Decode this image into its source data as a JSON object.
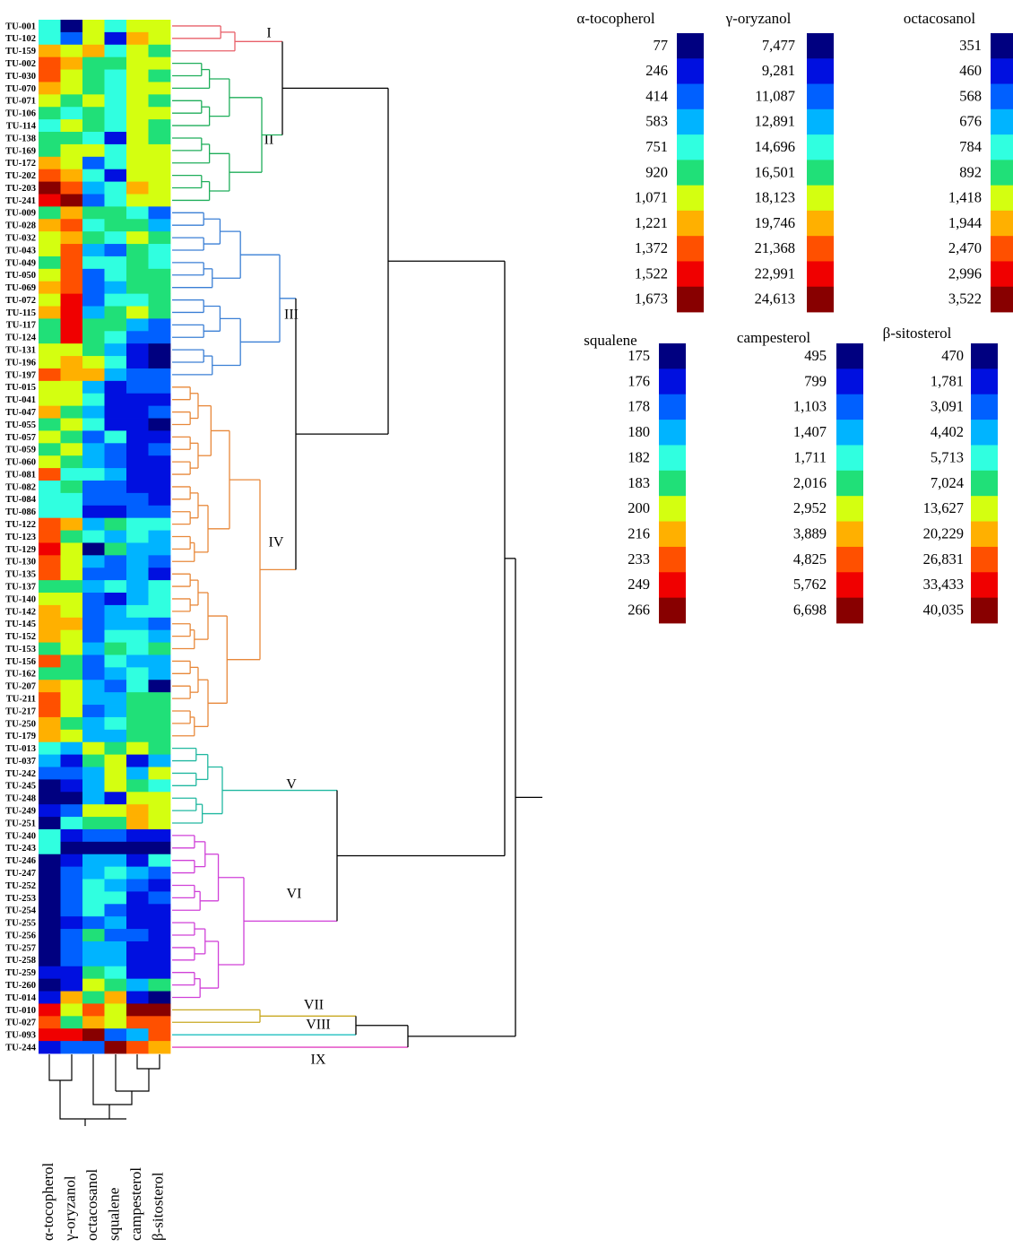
{
  "chart_data": {
    "type": "heatmap",
    "colorscale": [
      "#000080",
      "#0010e0",
      "#0060ff",
      "#00b4ff",
      "#30ffe0",
      "#20e078",
      "#d4ff10",
      "#ffb000",
      "#ff5000",
      "#f00000",
      "#880000"
    ],
    "clusters": [
      {
        "label": "I",
        "color": "#e8606a",
        "rows": [
          "TU-001",
          "TU-102",
          "TU-159"
        ]
      },
      {
        "label": "II",
        "color": "#1fae5a",
        "rows": [
          "TU-002",
          "TU-030",
          "TU-070",
          "TU-071",
          "TU-106",
          "TU-114",
          "TU-138",
          "TU-169",
          "TU-172",
          "TU-202",
          "TU-203",
          "TU-241"
        ]
      },
      {
        "label": "III",
        "color": "#3a7fd5",
        "rows": [
          "TU-009",
          "TU-028",
          "TU-032",
          "TU-043",
          "TU-049",
          "TU-050",
          "TU-069",
          "TU-072",
          "TU-115",
          "TU-117",
          "TU-124",
          "TU-131",
          "TU-196",
          "TU-197"
        ]
      },
      {
        "label": "IV",
        "color": "#e8883a",
        "rows": [
          "TU-015",
          "TU-041",
          "TU-047",
          "TU-055",
          "TU-057",
          "TU-059",
          "TU-060",
          "TU-081",
          "TU-082",
          "TU-084",
          "TU-086",
          "TU-122",
          "TU-123",
          "TU-129",
          "TU-130",
          "TU-135",
          "TU-137",
          "TU-140",
          "TU-142",
          "TU-145",
          "TU-152",
          "TU-153",
          "TU-156",
          "TU-162",
          "TU-207",
          "TU-211",
          "TU-217",
          "TU-250",
          "TU-179"
        ]
      },
      {
        "label": "V",
        "color": "#20b8a0",
        "rows": [
          "TU-013",
          "TU-037",
          "TU-242",
          "TU-245",
          "TU-248",
          "TU-249",
          "TU-251"
        ]
      },
      {
        "label": "VI",
        "color": "#d040d8",
        "rows": [
          "TU-240",
          "TU-243",
          "TU-246",
          "TU-247",
          "TU-252",
          "TU-253",
          "TU-254",
          "TU-255",
          "TU-256",
          "TU-257",
          "TU-258",
          "TU-259",
          "TU-260",
          "TU-014"
        ]
      },
      {
        "label": "VII",
        "color": "#c8a820",
        "rows": [
          "TU-010",
          "TU-027"
        ]
      },
      {
        "label": "VIII",
        "color": "#20c0c0",
        "rows": [
          "TU-093"
        ]
      },
      {
        "label": "IX",
        "color": "#e040c0",
        "rows": [
          "TU-244"
        ]
      }
    ],
    "series": [
      {
        "name": "α-tocopherol",
        "scale": [
          77,
          246,
          414,
          583,
          751,
          920,
          {
            "value": 1071,
            "label": "1,071"
          },
          {
            "value": 1221,
            "label": "1,221"
          },
          {
            "value": 1372,
            "label": "1,372"
          },
          {
            "value": 1522,
            "label": "1,522"
          },
          {
            "value": 1673,
            "label": "1,673"
          }
        ],
        "values": [
          751,
          751,
          1221,
          1372,
          1372,
          1221,
          1071,
          920,
          751,
          920,
          920,
          1221,
          1372,
          1673,
          1522,
          920,
          1221,
          1071,
          1071,
          920,
          1071,
          1221,
          1071,
          1221,
          920,
          920,
          1071,
          1071,
          1372,
          1071,
          1071,
          1221,
          920,
          1071,
          920,
          1071,
          1372,
          751,
          751,
          751,
          1372,
          1372,
          1522,
          1372,
          1372,
          920,
          1071,
          1221,
          1221,
          1221,
          920,
          1372,
          920,
          1221,
          1372,
          1372,
          1221,
          1221,
          751,
          583,
          414,
          77,
          77,
          246,
          77,
          751,
          751,
          77,
          77,
          77,
          77,
          77,
          77,
          77,
          77,
          77,
          246,
          77,
          246,
          1522,
          1372,
          1522,
          246
        ]
      },
      {
        "name": "γ-oryzanol",
        "scale": [
          {
            "value": 7477,
            "label": "7,477"
          },
          {
            "value": 9281,
            "label": "9,281"
          },
          {
            "value": 11087,
            "label": "11,087"
          },
          {
            "value": 12891,
            "label": "12,891"
          },
          {
            "value": 14696,
            "label": "14,696"
          },
          {
            "value": 16501,
            "label": "16,501"
          },
          {
            "value": 18123,
            "label": "18,123"
          },
          {
            "value": 19746,
            "label": "19,746"
          },
          {
            "value": 21368,
            "label": "21,368"
          },
          {
            "value": 22991,
            "label": "22,991"
          },
          {
            "value": 24613,
            "label": "24,613"
          }
        ],
        "values": [
          7477,
          11087,
          18123,
          19746,
          18123,
          18123,
          16501,
          14696,
          18123,
          16501,
          18123,
          18123,
          19746,
          21368,
          24613,
          19746,
          21368,
          19746,
          21368,
          21368,
          21368,
          21368,
          22991,
          22991,
          22991,
          22991,
          18123,
          19746,
          19746,
          18123,
          18123,
          16501,
          18123,
          16501,
          18123,
          16501,
          14696,
          16501,
          14696,
          14696,
          19746,
          16501,
          18123,
          18123,
          18123,
          16501,
          18123,
          18123,
          19746,
          18123,
          18123,
          16501,
          16501,
          18123,
          18123,
          18123,
          16501,
          18123,
          12891,
          9281,
          11087,
          9281,
          7477,
          11087,
          14696,
          9281,
          7477,
          9281,
          11087,
          11087,
          11087,
          11087,
          9281,
          11087,
          11087,
          11087,
          9281,
          9281,
          19746,
          18123,
          16501,
          22991,
          11087
        ]
      },
      {
        "name": "octacosanol",
        "scale": [
          351,
          460,
          568,
          676,
          784,
          892,
          {
            "value": 1418,
            "label": "1,418"
          },
          {
            "value": 1944,
            "label": "1,944"
          },
          {
            "value": 2470,
            "label": "2,470"
          },
          {
            "value": 2996,
            "label": "2,996"
          },
          {
            "value": 3522,
            "label": "3,522"
          }
        ],
        "values": [
          1418,
          1418,
          1944,
          892,
          892,
          892,
          1418,
          892,
          892,
          784,
          1418,
          568,
          784,
          676,
          568,
          892,
          784,
          892,
          676,
          784,
          568,
          568,
          568,
          676,
          892,
          892,
          892,
          1418,
          1944,
          676,
          784,
          676,
          784,
          568,
          676,
          676,
          784,
          568,
          568,
          460,
          676,
          784,
          351,
          676,
          568,
          676,
          568,
          568,
          568,
          568,
          676,
          568,
          568,
          676,
          676,
          568,
          676,
          676,
          1418,
          892,
          676,
          676,
          676,
          1418,
          892,
          568,
          351,
          676,
          676,
          784,
          784,
          784,
          568,
          892,
          676,
          676,
          892,
          1418,
          892,
          2470,
          1944,
          3522,
          568
        ]
      },
      {
        "name": "squalene",
        "scale": [
          175,
          176,
          178,
          180,
          182,
          183,
          200,
          216,
          233,
          249,
          266
        ],
        "values": [
          182,
          176,
          182,
          183,
          182,
          182,
          182,
          182,
          182,
          176,
          182,
          182,
          176,
          182,
          182,
          183,
          183,
          182,
          178,
          182,
          182,
          180,
          182,
          183,
          183,
          182,
          180,
          182,
          180,
          176,
          176,
          176,
          176,
          182,
          178,
          178,
          180,
          178,
          178,
          176,
          183,
          180,
          183,
          178,
          178,
          182,
          176,
          180,
          180,
          182,
          183,
          182,
          180,
          178,
          180,
          180,
          182,
          180,
          183,
          200,
          200,
          200,
          176,
          200,
          183,
          178,
          175,
          180,
          182,
          180,
          182,
          178,
          180,
          178,
          180,
          180,
          182,
          183,
          216,
          200,
          200,
          178,
          266
        ]
      },
      {
        "name": "campesterol",
        "scale": [
          495,
          799,
          {
            "value": 1103,
            "label": "1,103"
          },
          {
            "value": 1407,
            "label": "1,407"
          },
          {
            "value": 1711,
            "label": "1,711"
          },
          {
            "value": 2016,
            "label": "2,016"
          },
          {
            "value": 2952,
            "label": "2,952"
          },
          {
            "value": 3889,
            "label": "3,889"
          },
          {
            "value": 4825,
            "label": "4,825"
          },
          {
            "value": 5762,
            "label": "5,762"
          },
          {
            "value": 6698,
            "label": "6,698"
          }
        ],
        "values": [
          2952,
          3889,
          2952,
          2952,
          2952,
          2952,
          2952,
          2952,
          2952,
          2952,
          2952,
          2952,
          2952,
          3889,
          2952,
          1711,
          2016,
          2952,
          2016,
          2016,
          2016,
          2016,
          1711,
          2952,
          1407,
          1103,
          799,
          799,
          1103,
          1103,
          799,
          799,
          799,
          799,
          799,
          799,
          799,
          799,
          1103,
          1103,
          1711,
          1711,
          1407,
          1407,
          1407,
          1407,
          1407,
          1711,
          1407,
          1711,
          1711,
          1407,
          1711,
          1711,
          2016,
          2016,
          2016,
          2016,
          2952,
          799,
          1407,
          2016,
          2952,
          3889,
          3889,
          799,
          495,
          799,
          1407,
          1103,
          799,
          799,
          799,
          1103,
          799,
          799,
          799,
          1407,
          799,
          6698,
          4825,
          1407,
          4825
        ]
      },
      {
        "name": "β-sitosterol",
        "scale": [
          470,
          {
            "value": 1781,
            "label": "1,781"
          },
          {
            "value": 3091,
            "label": "3,091"
          },
          {
            "value": 4402,
            "label": "4,402"
          },
          {
            "value": 5713,
            "label": "5,713"
          },
          {
            "value": 7024,
            "label": "7,024"
          },
          {
            "value": 13627,
            "label": "13,627"
          },
          {
            "value": 20229,
            "label": "20,229"
          },
          {
            "value": 26831,
            "label": "26,831"
          },
          {
            "value": 33433,
            "label": "33,433"
          },
          {
            "value": 40035,
            "label": "40,035"
          }
        ],
        "values": [
          13627,
          13627,
          7024,
          13627,
          7024,
          13627,
          7024,
          13627,
          7024,
          7024,
          13627,
          13627,
          13627,
          13627,
          13627,
          3091,
          4402,
          7024,
          5713,
          5713,
          7024,
          7024,
          7024,
          7024,
          3091,
          3091,
          470,
          470,
          3091,
          3091,
          1781,
          3091,
          470,
          1781,
          3091,
          1781,
          1781,
          1781,
          1781,
          3091,
          5713,
          4402,
          4402,
          3091,
          1781,
          5713,
          5713,
          5713,
          3091,
          4402,
          7024,
          4402,
          4402,
          470,
          7024,
          7024,
          7024,
          7024,
          7024,
          4402,
          13627,
          5713,
          13627,
          13627,
          13627,
          1781,
          470,
          5713,
          3091,
          1781,
          3091,
          1781,
          1781,
          1781,
          1781,
          1781,
          1781,
          7024,
          470,
          40035,
          26831,
          26831,
          20229
        ]
      }
    ]
  }
}
